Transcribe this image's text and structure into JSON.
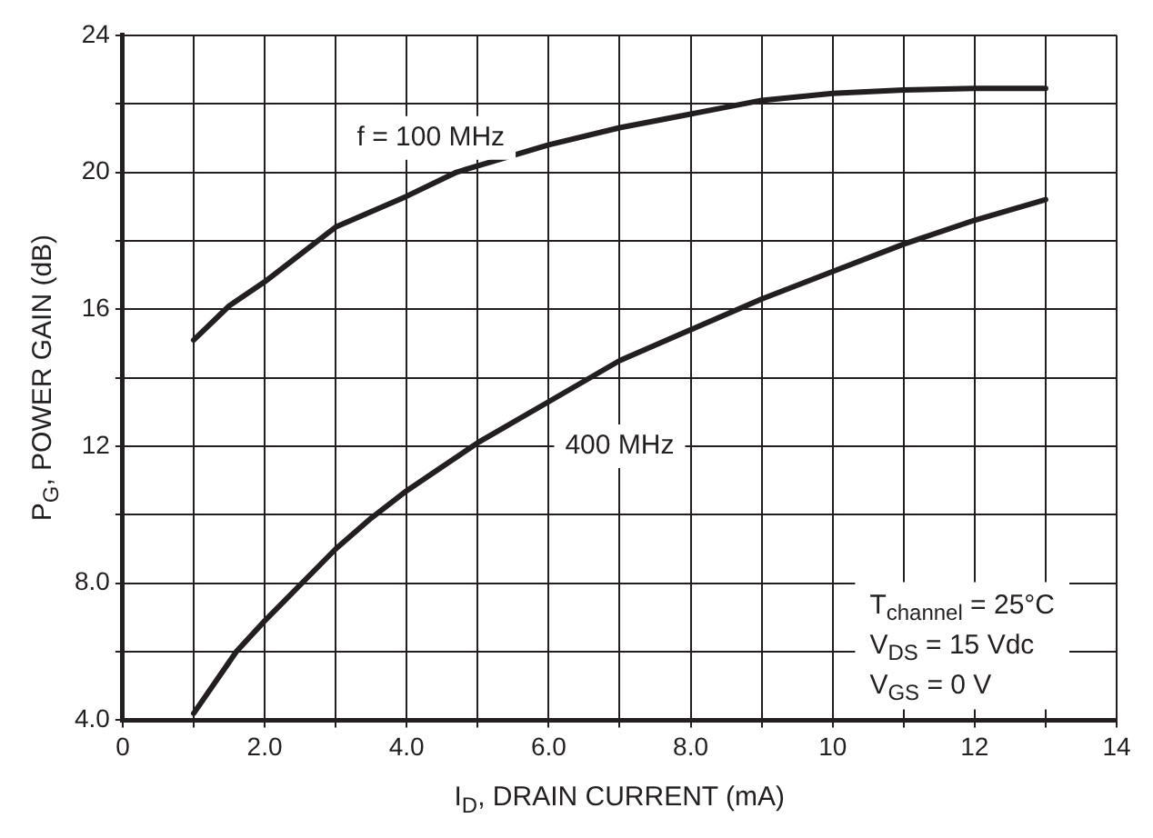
{
  "chart_data": {
    "type": "line",
    "xlabel": "I$_{D}$, DRAIN CURRENT (mA)",
    "ylabel": "P$_{G}$, POWER GAIN (dB)",
    "series": [
      {
        "color": "#231f20",
        "x": [
          1,
          1.5,
          2,
          3,
          4,
          4.7,
          6,
          7,
          8,
          9,
          10,
          11,
          12,
          13
        ],
        "values": [
          15.1,
          16.1,
          16.8,
          18.4,
          19.3,
          20,
          20.8,
          21.3,
          21.7,
          22.1,
          22.3,
          22.4,
          22.45,
          22.45
        ]
      },
      {
        "color": "#231f20",
        "x": [
          1,
          1.6,
          2,
          3,
          3.5,
          4,
          5,
          6,
          7,
          8,
          9,
          10,
          11,
          12,
          13
        ],
        "values": [
          4.2,
          6,
          6.9,
          9,
          9.9,
          10.7,
          12.1,
          13.3,
          14.5,
          15.4,
          16.3,
          17.1,
          17.9,
          18.6,
          19.2
        ]
      }
    ],
    "xlim": [
      0,
      14
    ],
    "ylim": [
      4,
      24
    ],
    "xticks": [
      0,
      {
        "value": 1,
        "label": null
      },
      {
        "value": 2,
        "label": "2.0"
      },
      {
        "value": 3,
        "label": null
      },
      {
        "value": 4,
        "label": "4.0"
      },
      {
        "value": 5,
        "label": null
      },
      {
        "value": 6,
        "label": "6.0"
      },
      {
        "value": 7,
        "label": null
      },
      {
        "value": 8,
        "label": "8.0"
      },
      {
        "value": 9,
        "label": null
      },
      10,
      {
        "value": 11,
        "label": null
      },
      12,
      {
        "value": 13,
        "label": null
      },
      14
    ],
    "yticks": [
      {
        "value": 4,
        "label": "4.0"
      },
      {
        "value": 6,
        "label": null
      },
      {
        "value": 8,
        "label": "8.0"
      },
      {
        "value": 10,
        "label": null
      },
      12,
      {
        "value": 14,
        "label": null
      },
      16,
      {
        "value": 18,
        "label": null
      },
      20,
      {
        "value": 22,
        "label": null
      },
      24
    ],
    "annotations": [
      "f = 100 MHz",
      "400 MHz",
      "T$_{channel}$ = 25°C",
      "V$_{DS}$ = 15 Vdc",
      "V$_{GS}$ = 0 V"
    ],
    "grid": true,
    "legend": false,
    "marker": "none",
    "line_style": "solid"
  }
}
